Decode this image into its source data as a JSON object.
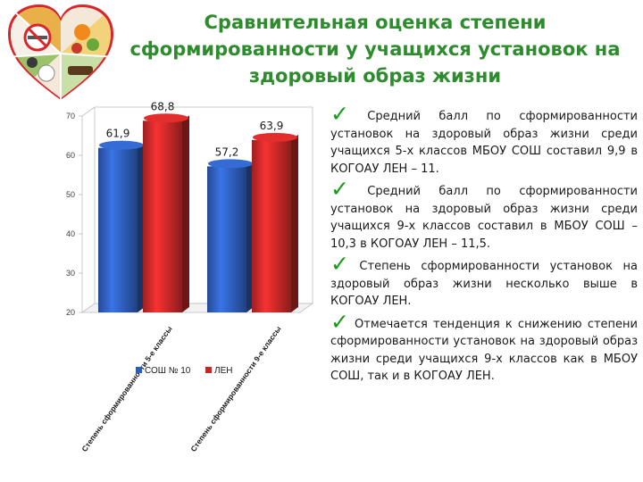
{
  "title": "Сравнительная оценка степени сформированности  у учащихся установок на здоровый образ жизни",
  "logo_icon": "heart-healthy-lifestyle-logo-icon",
  "chart_data": {
    "type": "bar",
    "categories": [
      "Степень сформированности 5-е классы",
      "Степень сформированности 9-е классы"
    ],
    "series": [
      {
        "name": "СОШ № 10",
        "values": [
          61.9,
          57.2
        ],
        "color": "#2e5db8"
      },
      {
        "name": "ЛЕН",
        "values": [
          68.8,
          63.9
        ],
        "color": "#c62828"
      }
    ],
    "data_labels": [
      [
        "61,9",
        "57,2"
      ],
      [
        "68,8",
        "63,9"
      ]
    ],
    "ylim": [
      20,
      70
    ],
    "yticks": [
      "20",
      "30",
      "40",
      "50",
      "60",
      "70"
    ],
    "legend": "bottom",
    "grid": false,
    "xlabel": "",
    "ylabel": ""
  },
  "bullets": [
    "Средний балл по сформированности установок на здоровый образ жизни среди учащихся 5-х классов МБОУ СОШ составил 9,9 в КОГОАУ ЛЕН – 11.",
    "Средний балл по сформированности установок на здоровый образ жизни среди учащихся 9-х классов составил в МБОУ СОШ – 10,3 в КОГОАУ ЛЕН – 11,5.",
    "Степень сформированности установок на здоровый образ жизни несколько выше в КОГОАУ ЛЕН.",
    "Отмечается тенденция к снижению степени сформированности установок на здоровый образ жизни среди учащихся 9-х классов как в МБОУ СОШ, так и в КОГОАУ ЛЕН."
  ],
  "check_glyph": "✓"
}
